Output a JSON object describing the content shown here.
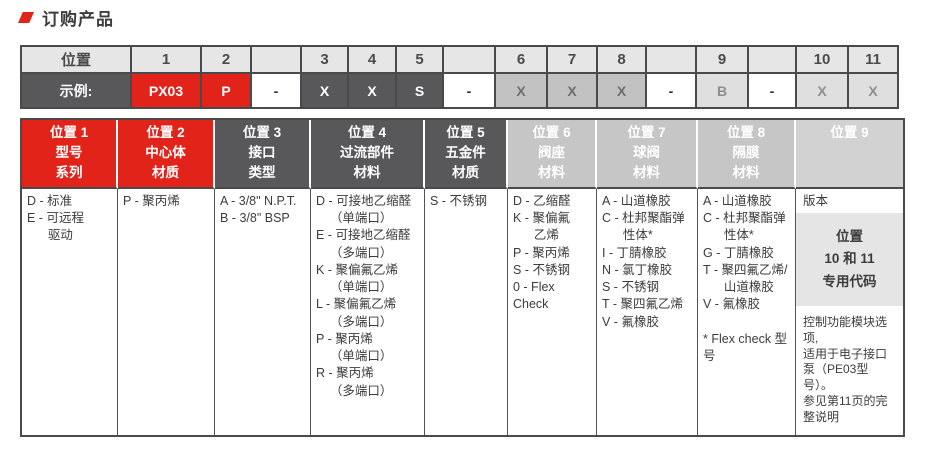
{
  "section": {
    "title": "订购产品"
  },
  "colors": {
    "accent_red": "#e2231a",
    "dark_gray": "#58585a",
    "header_light_gray": "#e6e6e6",
    "mid_gray": "#c6c6c6",
    "light_gray": "#dfdfdf"
  },
  "code_table": {
    "positions": [
      "位置",
      "1",
      "2",
      "",
      "3",
      "4",
      "5",
      "",
      "6",
      "7",
      "8",
      "",
      "9",
      "",
      "10",
      "11"
    ],
    "example": [
      "示例:",
      "PX03",
      "P",
      "-",
      "X",
      "X",
      "S",
      "-",
      "X",
      "X",
      "X",
      "-",
      "B",
      "-",
      "X",
      "X"
    ]
  },
  "spec_table": {
    "headers": [
      {
        "pos": "位置 1",
        "lines": [
          "型号",
          "系列"
        ]
      },
      {
        "pos": "位置 2",
        "lines": [
          "中心体",
          "材质"
        ]
      },
      {
        "pos": "位置 3",
        "lines": [
          "接口",
          "类型"
        ]
      },
      {
        "pos": "位置 4",
        "lines": [
          "过流部件",
          "材料"
        ]
      },
      {
        "pos": "位置 5",
        "lines": [
          "五金件",
          "材质"
        ]
      },
      {
        "pos": "位置 6",
        "lines": [
          "阀座",
          "材料"
        ]
      },
      {
        "pos": "位置 7",
        "lines": [
          "球阀",
          "材料"
        ]
      },
      {
        "pos": "位置 8",
        "lines": [
          "隔膜",
          "材料"
        ]
      },
      {
        "pos": "位置 9",
        "lines": []
      }
    ],
    "body": {
      "c1": [
        "D - 标准",
        "E - 可远程",
        "      驱动"
      ],
      "c2": [
        "P - 聚丙烯"
      ],
      "c3": [
        "A - 3/8\" N.P.T.",
        "B - 3/8\" BSP"
      ],
      "c4": [
        "D - 可接地乙缩醛",
        "    （单端口）",
        "E - 可接地乙缩醛",
        "    （多端口）",
        "K - 聚偏氟乙烯",
        "    （单端口）",
        "L - 聚偏氟乙烯",
        "    （多端口）",
        "P - 聚丙烯",
        "    （单端口）",
        "R - 聚丙烯",
        "    （多端口）"
      ],
      "c5": [
        "S - 不锈钢"
      ],
      "c6": [
        "D - 乙缩醛",
        "K - 聚偏氟",
        "      乙烯",
        "P - 聚丙烯",
        "S - 不锈钢",
        "0 - Flex Check"
      ],
      "c7": [
        "A - 山道橡胶",
        "C - 杜邦聚酯弹",
        "      性体*",
        "I - 丁腈橡胶",
        "N - 氯丁橡胶",
        "S - 不锈钢",
        "T - 聚四氟乙烯",
        "V - 氟橡胶"
      ],
      "c8": [
        "A - 山道橡胶",
        "C - 杜邦聚酯弹",
        "      性体*",
        "G - 丁腈橡胶",
        "T - 聚四氟乙烯/",
        "      山道橡胶",
        "V - 氟橡胶",
        "",
        "* Flex check 型号"
      ],
      "c9": {
        "version": "版本",
        "box": [
          "位置",
          "10 和 11",
          "专用代码"
        ],
        "note": [
          "控制功能模块选项,",
          "适用于电子接口",
          "泵（PE03型号）。",
          "参见第11页的完",
          "整说明"
        ]
      }
    }
  }
}
